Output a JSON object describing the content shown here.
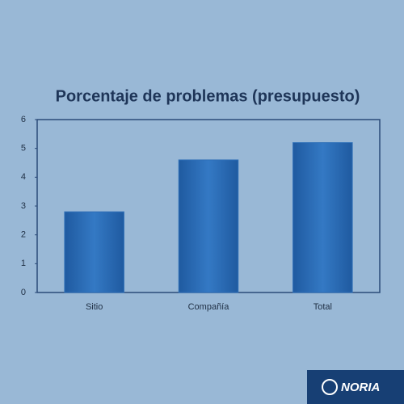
{
  "chart_data": {
    "type": "bar",
    "title": "Porcentaje de problemas (presupuesto)",
    "categories": [
      "Sitio",
      "Compañía",
      "Total"
    ],
    "values": [
      2.8,
      4.6,
      5.2
    ],
    "color": "#2f6fb8",
    "ylim": [
      0,
      6
    ],
    "yticks": [
      0,
      1,
      2,
      3,
      4,
      5,
      6
    ],
    "grid": false
  },
  "logo": "NORIA"
}
